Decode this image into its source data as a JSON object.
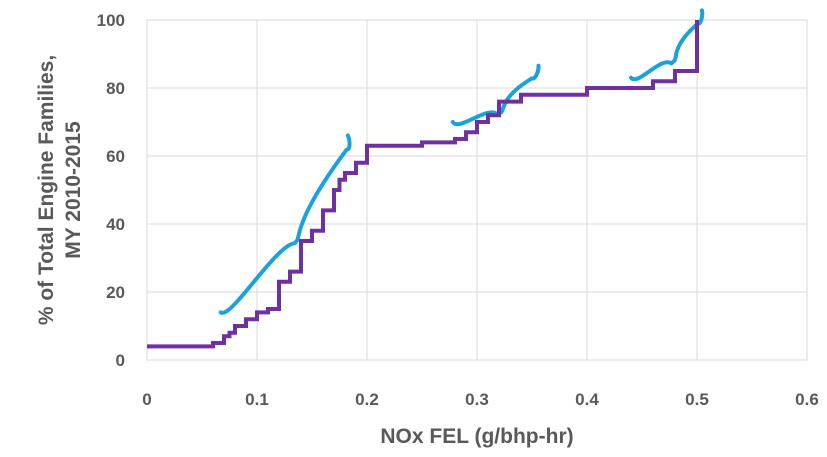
{
  "chart_data": {
    "type": "line",
    "title": "",
    "xlabel": "NOx FEL (g/bhp-hr)",
    "ylabel_lines": [
      "% of Total Engine Families,",
      "MY 2010-2015"
    ],
    "xlim": [
      0,
      0.6
    ],
    "ylim": [
      0,
      100
    ],
    "x_ticks": [
      0,
      0.1,
      0.2,
      0.3,
      0.4,
      0.5,
      0.6
    ],
    "y_ticks": [
      0,
      20,
      40,
      60,
      80,
      100
    ],
    "x_tick_labels": [
      "0",
      "0.1",
      "0.2",
      "0.3",
      "0.4",
      "0.5",
      "0.6"
    ],
    "y_tick_labels": [
      "0",
      "20",
      "40",
      "60",
      "80",
      "100"
    ],
    "grid": true,
    "legend": "none",
    "series": [
      {
        "step": true,
        "color": "#7030a0",
        "x": [
          0,
          0.06,
          0.07,
          0.075,
          0.08,
          0.09,
          0.1,
          0.11,
          0.12,
          0.13,
          0.14,
          0.15,
          0.16,
          0.17,
          0.175,
          0.18,
          0.19,
          0.2,
          0.25,
          0.28,
          0.29,
          0.3,
          0.31,
          0.32,
          0.33,
          0.34,
          0.35,
          0.4,
          0.45,
          0.46,
          0.47,
          0.48,
          0.5
        ],
        "y": [
          4,
          5,
          7,
          8,
          10,
          12,
          14,
          15,
          23,
          26,
          35,
          38,
          44,
          50,
          53,
          55,
          58,
          63,
          64,
          65,
          67,
          70,
          72,
          76,
          76,
          78,
          78,
          80,
          80,
          82,
          82,
          85,
          100
        ]
      }
    ],
    "annotations": [
      {
        "type": "brace",
        "color": "#1ba1dc"
      },
      {
        "type": "brace",
        "color": "#1ba1dc"
      },
      {
        "type": "brace",
        "color": "#1ba1dc"
      }
    ]
  }
}
